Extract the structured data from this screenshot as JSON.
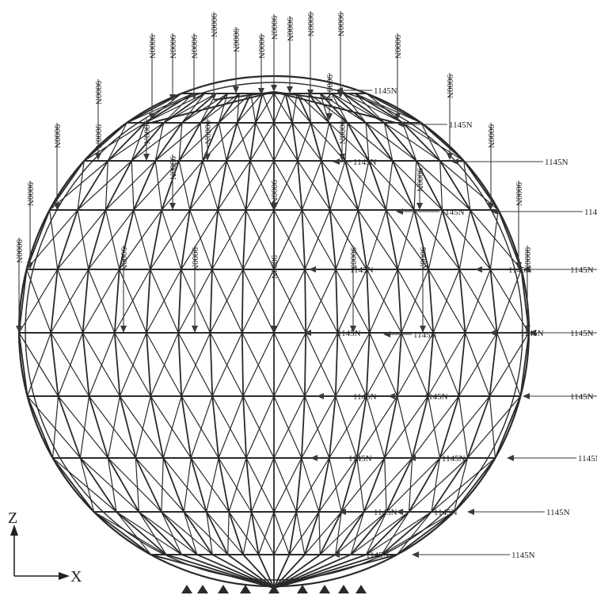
{
  "diagram": {
    "vertical_load_label": "9000N",
    "horizontal_load_label": "1145N",
    "axes": {
      "z_label": "Z",
      "x_label": "X"
    },
    "colors": {
      "member": "#2a2a2a",
      "load": "#3a3a3a",
      "background": "#ffffff"
    }
  }
}
